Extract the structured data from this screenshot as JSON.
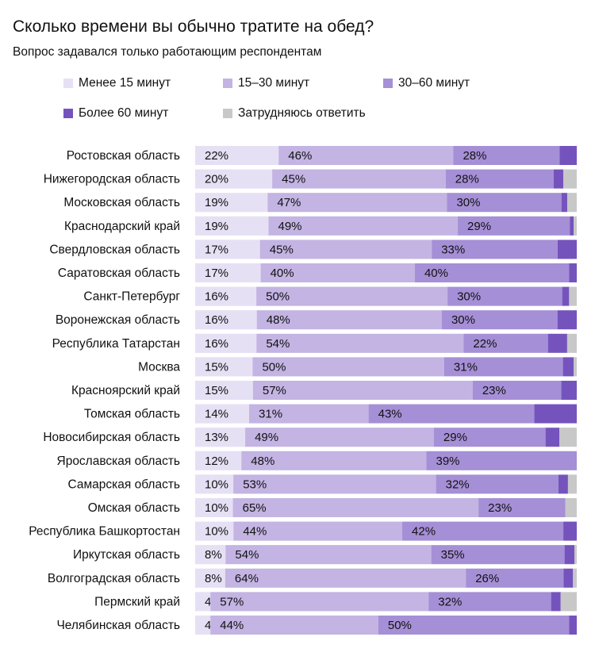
{
  "title": "Сколько времени вы обычно тратите на обед?",
  "subtitle": "Вопрос задавался только работающим респондентам",
  "colors": {
    "less15": "#e6e0f5",
    "m15_30": "#c3b4e3",
    "m30_60": "#a58fd6",
    "more60": "#7553bd",
    "unsure": "#c8c8c8"
  },
  "legend": [
    {
      "label": "Менее 15 минут",
      "color": "#e6e0f5"
    },
    {
      "label": "15–30 минут",
      "color": "#c3b4e3"
    },
    {
      "label": "30–60 минут",
      "color": "#a58fd6"
    },
    {
      "label": "Более 60 минут",
      "color": "#7553bd"
    },
    {
      "label": "Затрудняюсь ответить",
      "color": "#c8c8c8"
    }
  ],
  "chart_data": {
    "type": "bar",
    "orientation": "horizontal",
    "stacked": true,
    "unit": "%",
    "categories": [
      "Ростовская область",
      "Нижегородская область",
      "Московская область",
      "Краснодарский край",
      "Свердловская область",
      "Саратовская область",
      "Санкт-Петербург",
      "Воронежская область",
      "Республика Татарстан",
      "Москва",
      "Красноярский край",
      "Томская область",
      "Новосибирская область",
      "Ярославская область",
      "Самарская область",
      "Омская область",
      "Республика Башкортостан",
      "Иркутская область",
      "Волгоградская область",
      "Пермский край",
      "Челябинская область"
    ],
    "series": [
      {
        "name": "Менее 15 минут",
        "values": [
          22,
          20,
          19,
          19,
          17,
          17,
          16,
          16,
          16,
          15,
          15,
          14,
          13,
          12,
          10,
          10,
          10,
          8,
          8,
          4,
          4
        ]
      },
      {
        "name": "15–30 минут",
        "values": [
          46,
          45,
          47,
          49,
          45,
          40,
          50,
          48,
          54,
          50,
          57,
          31,
          49,
          48,
          53,
          65,
          44,
          54,
          64,
          57,
          44
        ]
      },
      {
        "name": "30–60 минут",
        "values": [
          28,
          28,
          30,
          29,
          33,
          40,
          30,
          30,
          22,
          31,
          23,
          43,
          29,
          39,
          32,
          23,
          42,
          35,
          26,
          32,
          50
        ]
      },
      {
        "name": "Более 60 минут",
        "values": [
          4.5,
          2.5,
          1.5,
          1,
          5,
          2,
          1.8,
          5,
          5,
          2.8,
          4,
          11,
          3.6,
          0,
          2.5,
          0,
          3.5,
          2.6,
          2.5,
          2.5,
          2
        ]
      },
      {
        "name": "Затрудняюсь ответить",
        "values": [
          0,
          3.5,
          2.5,
          0.8,
          0,
          0,
          2,
          0,
          2.5,
          0.8,
          0,
          0,
          4.5,
          0,
          2.3,
          3,
          0,
          0.6,
          1,
          4.2,
          0
        ]
      }
    ],
    "xlim": [
      0,
      100
    ],
    "grid": false,
    "legend_position": "top",
    "data_labels": "first three segments"
  }
}
